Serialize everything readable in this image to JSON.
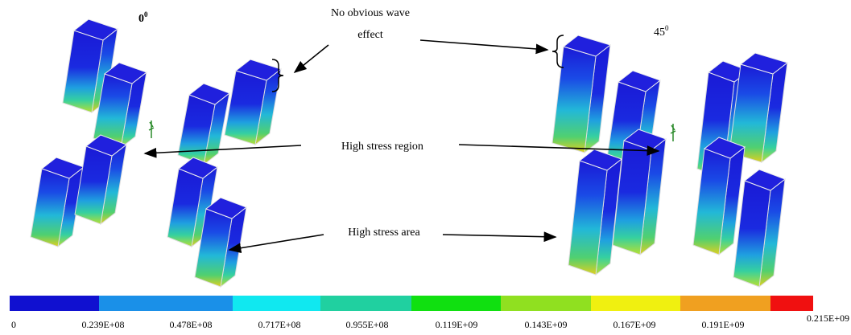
{
  "figure": {
    "angle_left": {
      "value": "0",
      "superscript": "0"
    },
    "angle_right": {
      "value": "45",
      "superscript": "0"
    },
    "annotations": [
      "No obvious wave",
      "effect",
      "High stress region",
      "High stress area"
    ],
    "legend_labels": [
      "0",
      "0.239E+08",
      "0.478E+08",
      "0.717E+08",
      "0.955E+08",
      "0.119E+09",
      "0.143E+09",
      "0.167E+09",
      "0.191E+09",
      "0.215E+09"
    ]
  }
}
